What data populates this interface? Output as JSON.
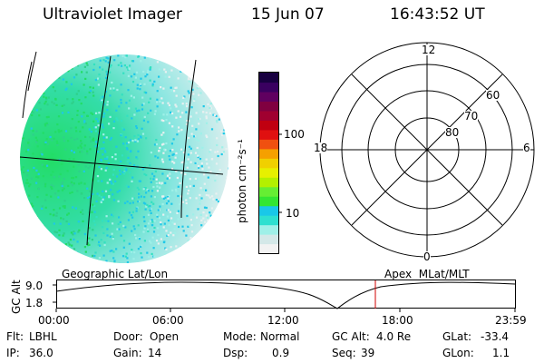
{
  "header": {
    "title": "Ultraviolet Imager",
    "date": "15 Jun 07",
    "time": "16:43:52 UT"
  },
  "colorbar": {
    "unit_label": "photon cm⁻²s⁻¹",
    "ticks": [
      "100",
      "10"
    ],
    "colors": [
      "#f2f2f2",
      "#d4e8e8",
      "#9ff0e8",
      "#2ee0d0",
      "#19c8e8",
      "#33e633",
      "#66ee33",
      "#b3f000",
      "#e6f000",
      "#f0d000",
      "#f5a000",
      "#f05010",
      "#e01010",
      "#c00010",
      "#a00030",
      "#800040",
      "#600060",
      "#3a0060",
      "#180040"
    ]
  },
  "polar_grid": {
    "mlt_labels": [
      "12",
      "18",
      "6",
      "0"
    ],
    "lat_labels": [
      "60",
      "70",
      "80"
    ]
  },
  "timeline": {
    "left_label": "Geographic Lat/Lon",
    "right_label": "Apex  MLat/MLT",
    "axis_title": "GC Alt",
    "y_ticks": [
      "9.0",
      "1.8"
    ],
    "x_ticks": [
      "00:00",
      "06:00",
      "12:00",
      "18:00",
      "23:59"
    ],
    "marker_color": "#d00000"
  },
  "status": {
    "row1": [
      {
        "label": "Flt:",
        "value": "LBHL"
      },
      {
        "label": "Door:",
        "value": "Open"
      },
      {
        "label": "Mode:",
        "value": "Normal"
      },
      {
        "label": "GC Alt:",
        "value": "4.0 Re"
      },
      {
        "label": "GLat:",
        "value": "-33.4"
      }
    ],
    "row2": [
      {
        "label": "IP:",
        "value": "36.0"
      },
      {
        "label": "Gain:",
        "value": "14"
      },
      {
        "label": "Dsp:",
        "value": "0.9"
      },
      {
        "label": "Seq:",
        "value": "39"
      },
      {
        "label": "GLon:",
        "value": "1.1"
      }
    ]
  }
}
